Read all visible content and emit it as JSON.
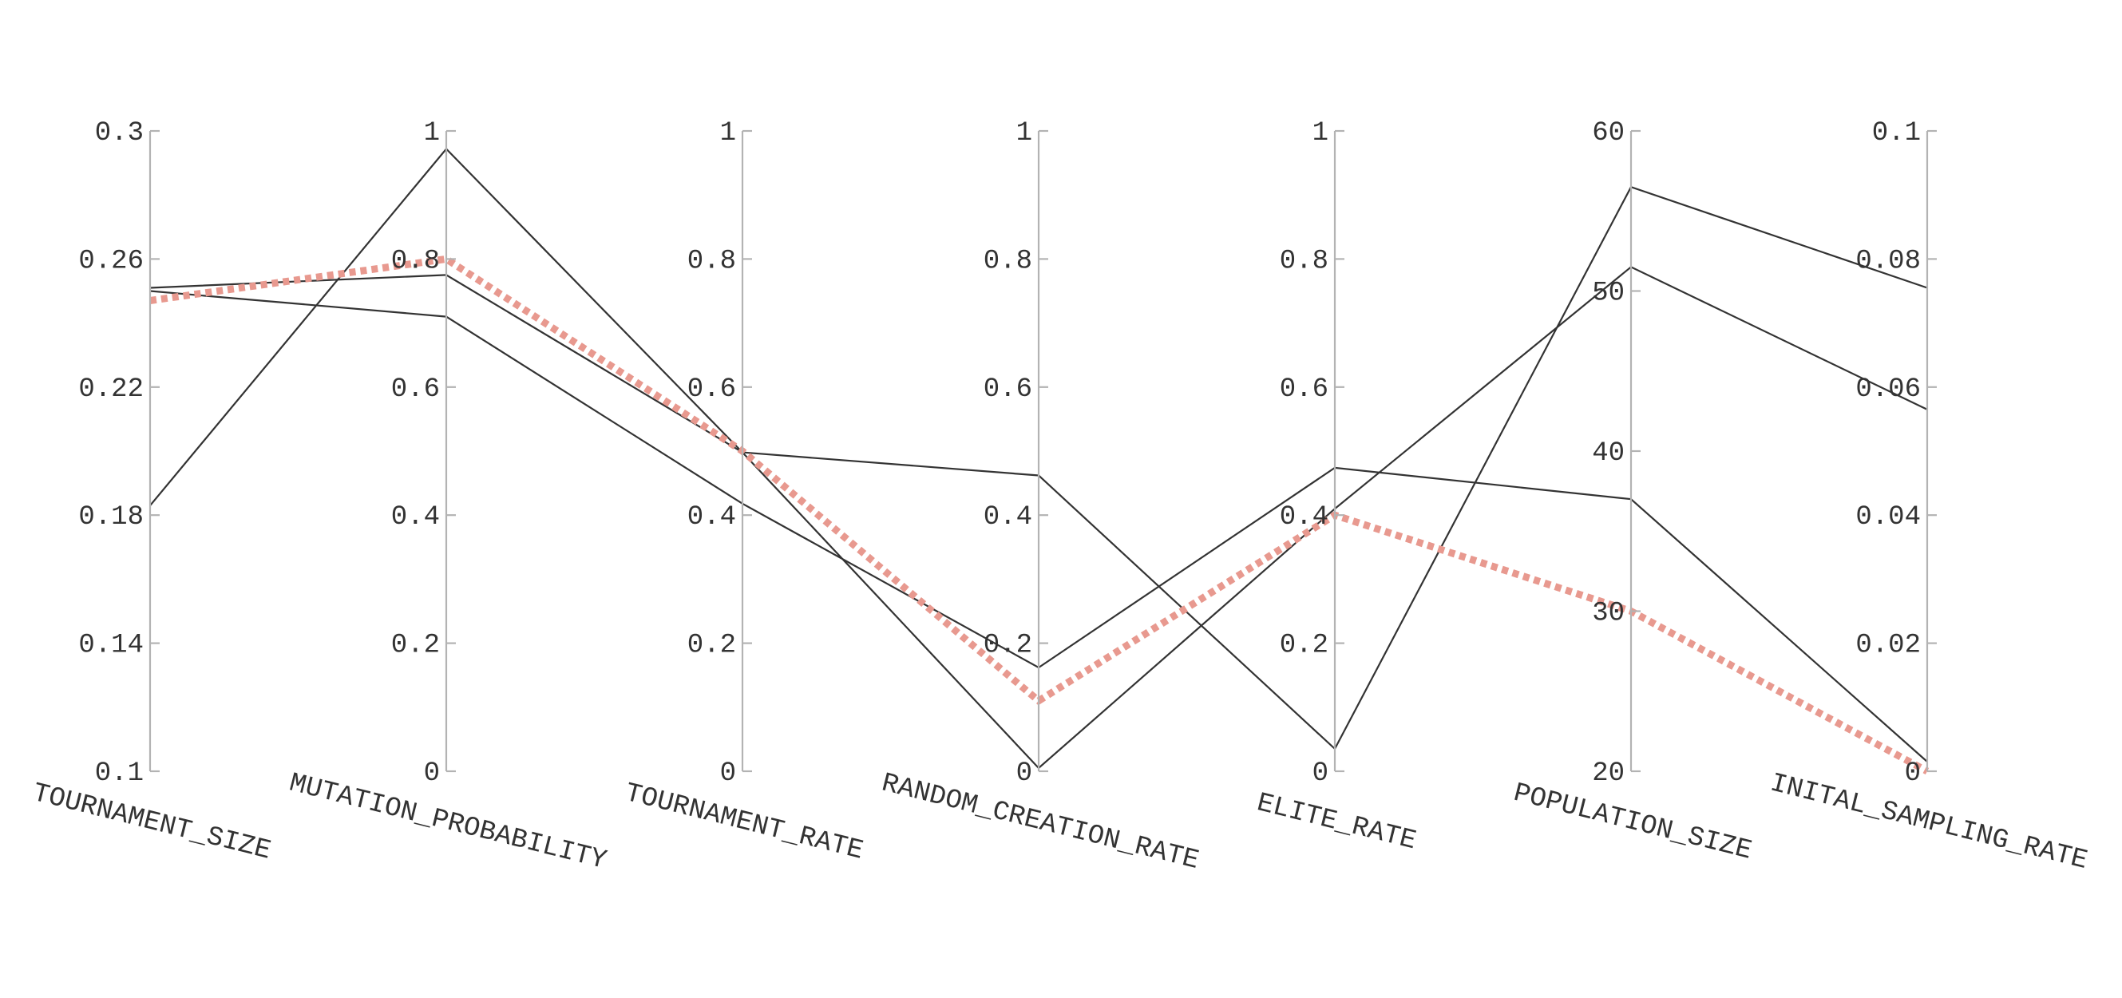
{
  "chart_data": {
    "type": "parallel-coordinates",
    "title": "",
    "axes": [
      {
        "name": "TOURNAMENT_SIZE",
        "range": [
          0.1,
          0.3
        ],
        "ticks": [
          "0.1",
          "0.14",
          "0.18",
          "0.22",
          "0.26",
          "0.3"
        ]
      },
      {
        "name": "MUTATION_PROBABILITY",
        "range": [
          0,
          1
        ],
        "ticks": [
          "0",
          "0.2",
          "0.4",
          "0.6",
          "0.8",
          "1"
        ]
      },
      {
        "name": "TOURNAMENT_RATE",
        "range": [
          0,
          1
        ],
        "ticks": [
          "0",
          "0.2",
          "0.4",
          "0.6",
          "0.8",
          "1"
        ]
      },
      {
        "name": "RANDOM_CREATION_RATE",
        "range": [
          0,
          1
        ],
        "ticks": [
          "0",
          "0.2",
          "0.4",
          "0.6",
          "0.8",
          "1"
        ]
      },
      {
        "name": "ELITE_RATE",
        "range": [
          0,
          1
        ],
        "ticks": [
          "0",
          "0.2",
          "0.4",
          "0.6",
          "0.8",
          "1"
        ]
      },
      {
        "name": "POPULATION_SIZE",
        "range": [
          20,
          60
        ],
        "ticks": [
          "20",
          "30",
          "40",
          "50",
          "60"
        ]
      },
      {
        "name": "INITAL_SAMPLING_RATE",
        "range": [
          0,
          0.1
        ],
        "ticks": [
          "0",
          "0.02",
          "0.04",
          "0.06",
          "0.08",
          "0.1"
        ]
      }
    ],
    "series": [
      {
        "values": [
          0.251,
          0.775,
          0.498,
          0.462,
          0.035,
          56.5,
          0.0755
        ],
        "color": "#333333",
        "style": "solid"
      },
      {
        "values": [
          0.25,
          0.71,
          0.418,
          0.162,
          0.474,
          37.0,
          0.0015
        ],
        "color": "#333333",
        "style": "solid"
      },
      {
        "values": [
          0.183,
          0.972,
          0.498,
          0.005,
          0.41,
          51.5,
          0.0565
        ],
        "color": "#333333",
        "style": "solid"
      },
      {
        "values": [
          0.247,
          0.8,
          0.5,
          0.11,
          0.4,
          30.0,
          0.0
        ],
        "color": "#e8998f",
        "style": "dotted"
      }
    ]
  }
}
